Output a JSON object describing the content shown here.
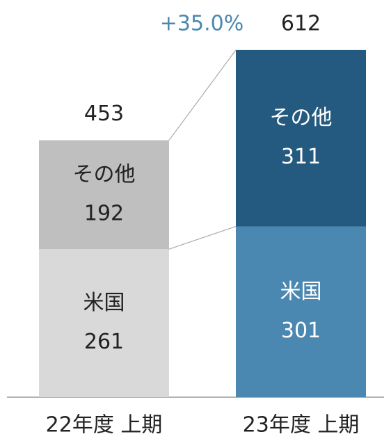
{
  "chart_data": {
    "type": "stacked_bar",
    "categories": [
      "22年度 上期",
      "23年度 上期"
    ],
    "series": [
      {
        "name": "米国",
        "colors": [
          "#d9d9d9",
          "#4a87b1"
        ],
        "values": [
          261,
          301
        ]
      },
      {
        "name": "その他",
        "colors": [
          "#bfbfbf",
          "#255a80"
        ],
        "values": [
          192,
          311
        ]
      }
    ],
    "totals": [
      453,
      612
    ],
    "annotation": "+35.0%",
    "annotation_color": "#4a87b1"
  }
}
